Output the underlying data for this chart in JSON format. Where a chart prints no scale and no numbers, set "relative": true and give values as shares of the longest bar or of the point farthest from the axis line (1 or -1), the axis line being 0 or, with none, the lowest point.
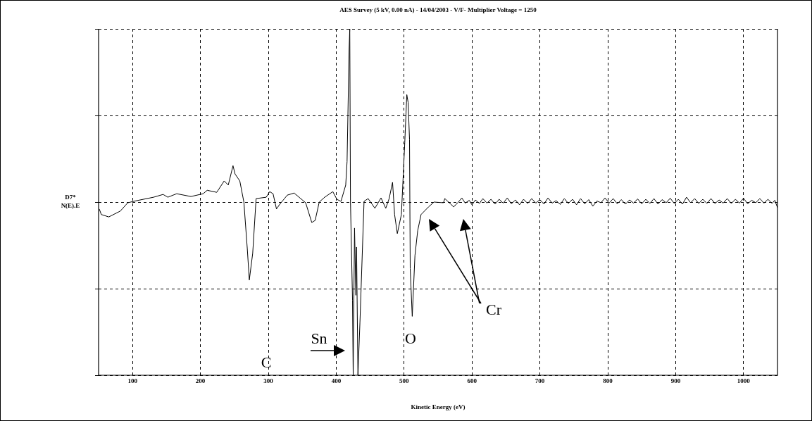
{
  "chart_data": {
    "type": "line",
    "title": "AES Survey (5 kV, 0.00 nA) - 14/04/2003 - V/F- Multiplier Voltage = 1250",
    "xlabel": "Kinetic Energy (eV)",
    "ylabel": "D7*\nN(E).E",
    "relative": true,
    "xlim": [
      50,
      1050
    ],
    "xticks": [
      100,
      200,
      300,
      400,
      500,
      600,
      700,
      800,
      900,
      1000
    ],
    "grid": true,
    "legend": false,
    "marker": "none",
    "line_style": "solid",
    "annotations": [
      "C",
      "Sn",
      "O",
      "Cr"
    ],
    "series": [
      {
        "color": "#000000",
        "x": [
          51,
          54,
          65,
          82,
          93,
          106,
          131,
          145,
          152,
          165,
          186,
          204,
          210,
          224,
          235,
          241,
          248,
          251,
          258,
          264,
          269,
          272,
          277,
          282,
          297,
          302,
          307,
          312,
          317,
          328,
          338,
          355,
          364,
          369,
          375,
          383,
          395,
          401,
          407,
          414,
          416,
          419,
          420,
          421,
          424,
          425,
          427,
          429,
          430,
          432,
          435,
          441,
          447,
          457,
          466,
          473,
          478,
          483,
          486,
          490,
          496,
          501,
          504,
          506,
          508,
          509,
          512,
          516,
          520,
          525,
          536,
          544,
          558,
          560,
          573,
          580,
          585,
          590,
          596,
          600,
          605,
          611,
          616,
          622,
          628,
          634,
          640,
          646,
          652,
          658,
          664,
          670,
          676,
          682,
          688,
          694,
          700,
          706,
          712,
          718,
          724,
          730,
          736,
          742,
          748,
          754,
          760,
          766,
          772,
          778,
          784,
          790,
          796,
          802,
          808,
          814,
          820,
          826,
          832,
          838,
          844,
          850,
          856,
          862,
          868,
          874,
          880,
          886,
          892,
          898,
          904,
          910,
          916,
          922,
          928,
          934,
          940,
          946,
          952,
          958,
          964,
          970,
          976,
          982,
          988,
          994,
          1000,
          1006,
          1012,
          1018,
          1024,
          1030,
          1036,
          1042,
          1046,
          1050
        ],
        "values": [
          0.48,
          0.464,
          0.457,
          0.474,
          0.498,
          0.504,
          0.514,
          0.522,
          0.514,
          0.524,
          0.516,
          0.524,
          0.534,
          0.528,
          0.561,
          0.549,
          0.605,
          0.581,
          0.561,
          0.5,
          0.366,
          0.275,
          0.352,
          0.51,
          0.514,
          0.53,
          0.524,
          0.48,
          0.494,
          0.52,
          0.526,
          0.498,
          0.441,
          0.447,
          0.5,
          0.514,
          0.53,
          0.508,
          0.502,
          0.549,
          0.617,
          0.941,
          1,
          0.502,
          0.217,
          0,
          0.425,
          0.231,
          0.37,
          0,
          0.154,
          0.502,
          0.51,
          0.482,
          0.512,
          0.482,
          0.51,
          0.557,
          0.464,
          0.409,
          0.464,
          0.672,
          0.81,
          0.787,
          0.68,
          0.308,
          0.17,
          0.346,
          0.417,
          0.464,
          0.486,
          0.5,
          0.498,
          0.51,
          0.486,
          0.5,
          0.512,
          0.497,
          0.505,
          0.492,
          0.506,
          0.496,
          0.51,
          0.497,
          0.508,
          0.494,
          0.508,
          0.497,
          0.512,
          0.495,
          0.506,
          0.492,
          0.508,
          0.496,
          0.51,
          0.497,
          0.507,
          0.494,
          0.512,
          0.497,
          0.504,
          0.493,
          0.51,
          0.496,
          0.508,
          0.492,
          0.51,
          0.495,
          0.507,
          0.488,
          0.503,
          0.498,
          0.512,
          0.497,
          0.51,
          0.495,
          0.507,
          0.494,
          0.506,
          0.497,
          0.509,
          0.495,
          0.508,
          0.496,
          0.51,
          0.494,
          0.507,
          0.498,
          0.511,
          0.496,
          0.508,
          0.494,
          0.514,
          0.498,
          0.51,
          0.496,
          0.508,
          0.496,
          0.51,
          0.496,
          0.506,
          0.497,
          0.51,
          0.496,
          0.508,
          0.497,
          0.511,
          0.495,
          0.505,
          0.498,
          0.51,
          0.497,
          0.508,
          0.496,
          0.505,
          0.484
        ]
      }
    ]
  }
}
